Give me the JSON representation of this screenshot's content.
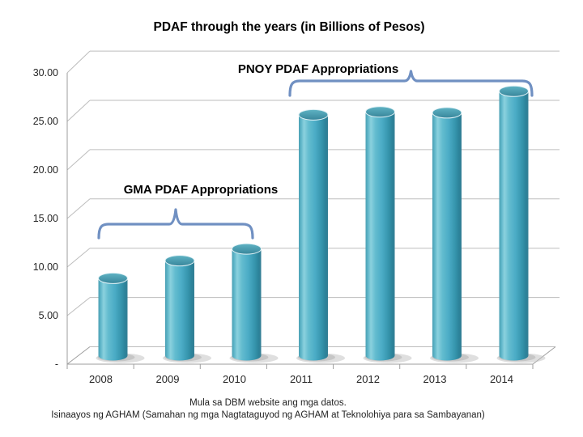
{
  "chart_data": {
    "type": "bar",
    "subtype": "3d-cylinder",
    "title": "PDAF through the years (in Billions of Pesos)",
    "categories": [
      "2008",
      "2009",
      "2010",
      "2011",
      "2012",
      "2013",
      "2014"
    ],
    "values": [
      7.9,
      9.7,
      10.9,
      24.6,
      24.9,
      24.8,
      27.0
    ],
    "xlabel": "",
    "ylabel": "",
    "ylim": [
      0,
      30
    ],
    "ytick_step": 5,
    "ytick_labels": [
      "-",
      "5.00",
      "10.00",
      "15.00",
      "20.00",
      "25.00",
      "30.00"
    ],
    "grid": true,
    "legend": "none",
    "annotations": [
      {
        "label": "GMA PDAF Appropriations",
        "span_categories": [
          "2008",
          "2010"
        ]
      },
      {
        "label": "PNOY PDAF Appropriations",
        "span_categories": [
          "2011",
          "2014"
        ]
      }
    ],
    "footnotes": [
      "Mula sa DBM website ang mga datos.",
      "Isinaayos ng AGHAM (Samahan ng mga Nagtataguyod ng AGHAM at Teknolohiya para sa Sambayanan)"
    ],
    "colors": {
      "bar": "#4bacc6",
      "bar_highlight": "#8bd1de",
      "bar_shade": "#2c8299",
      "brace": "#7090c2",
      "gridline": "#bdbdbd",
      "axis": "#9e9e9e",
      "tick_text": "#262626",
      "background": "#ffffff"
    }
  }
}
